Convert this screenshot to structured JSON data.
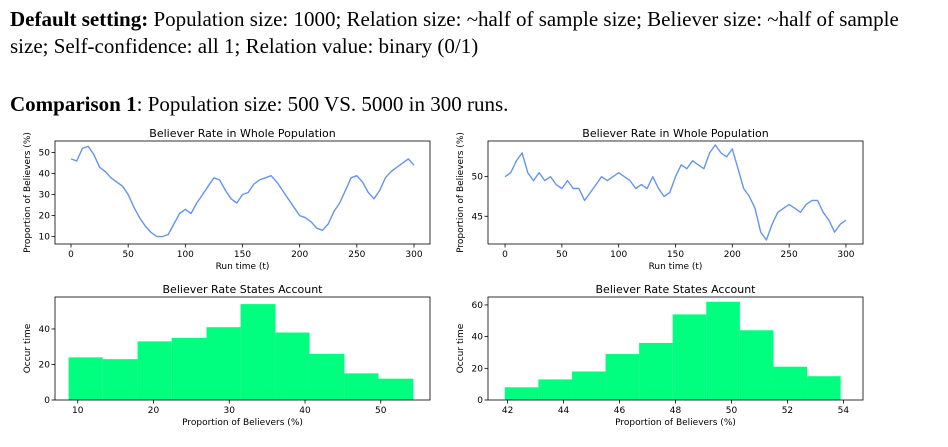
{
  "header": {
    "default_label": "Default setting:",
    "default_text": " Population size: 1000; Relation size: ~half of sample size; Believer size: ~half of sample size; Self-confidence: all 1; Relation value: binary (0/1)",
    "comparison_label": "Comparison 1",
    "comparison_text": ": Population size: 500 VS. 5000 in 300 runs."
  },
  "colors": {
    "line": "#6495ED",
    "bar": "#00FF7F"
  },
  "chart_data": [
    {
      "type": "line",
      "title": "Believer Rate in Whole Population",
      "xlabel": "Run time (t)",
      "ylabel": "Proportion of Believers (%)",
      "xlim": [
        -14,
        314
      ],
      "ylim": [
        6.5,
        55.5
      ],
      "xticks": [
        0,
        50,
        100,
        150,
        200,
        250,
        300
      ],
      "yticks": [
        10,
        20,
        30,
        40,
        50
      ],
      "x": [
        0,
        5,
        10,
        15,
        20,
        25,
        30,
        35,
        40,
        45,
        50,
        55,
        60,
        65,
        70,
        75,
        80,
        85,
        90,
        95,
        100,
        105,
        110,
        115,
        120,
        125,
        130,
        135,
        140,
        145,
        150,
        155,
        160,
        165,
        170,
        175,
        180,
        185,
        190,
        195,
        200,
        205,
        210,
        215,
        220,
        225,
        230,
        235,
        240,
        245,
        250,
        255,
        260,
        265,
        270,
        275,
        280,
        285,
        290,
        295,
        300
      ],
      "values": [
        47,
        46,
        52,
        53,
        49,
        43,
        41,
        38,
        36,
        34,
        30,
        24,
        19,
        15,
        12,
        10,
        10,
        11,
        16,
        21,
        23,
        21,
        26,
        30,
        34,
        38,
        37,
        32,
        28,
        26,
        30,
        31,
        35,
        37,
        38,
        39,
        36,
        32,
        28,
        24,
        20,
        19,
        17,
        14,
        13,
        16,
        22,
        26,
        32,
        38,
        39,
        36,
        31,
        28,
        32,
        38,
        41,
        43,
        45,
        47,
        44
      ]
    },
    {
      "type": "line",
      "title": "Believer Rate in Whole Population",
      "xlabel": "Run time (t)",
      "ylabel": "Proportion of Believers (%)",
      "xlim": [
        -15,
        315
      ],
      "ylim": [
        41.5,
        54.5
      ],
      "xticks": [
        0,
        50,
        100,
        150,
        200,
        250,
        300
      ],
      "yticks": [
        45,
        50
      ],
      "x": [
        0,
        5,
        10,
        15,
        20,
        25,
        30,
        35,
        40,
        45,
        50,
        55,
        60,
        65,
        70,
        75,
        80,
        85,
        90,
        95,
        100,
        105,
        110,
        115,
        120,
        125,
        130,
        135,
        140,
        145,
        150,
        155,
        160,
        165,
        170,
        175,
        180,
        185,
        190,
        195,
        200,
        205,
        210,
        215,
        220,
        225,
        230,
        235,
        240,
        245,
        250,
        255,
        260,
        265,
        270,
        275,
        280,
        285,
        290,
        295,
        300
      ],
      "values": [
        50,
        50.5,
        52,
        53,
        50.5,
        49.5,
        50.5,
        49.5,
        50,
        49,
        48.5,
        49.5,
        48.5,
        48.5,
        47,
        48,
        49,
        50,
        49.5,
        50,
        50.5,
        50,
        49.5,
        48.5,
        49,
        48.5,
        50,
        48.5,
        47.5,
        48,
        50,
        51.5,
        51,
        52,
        51.5,
        51,
        53,
        54,
        53,
        52.5,
        53.5,
        51,
        48.5,
        47.5,
        46,
        43,
        42,
        44,
        45.5,
        46,
        46.5,
        46,
        45.5,
        46.5,
        47,
        47,
        45.5,
        44.5,
        43,
        44,
        44.5
      ]
    },
    {
      "type": "bar",
      "title": "Believer Rate States Account",
      "xlabel": "Proportion of Believers (%)",
      "ylabel": "Occur time",
      "xlim": [
        7,
        56.5
      ],
      "ylim": [
        0,
        58
      ],
      "xticks": [
        10,
        20,
        30,
        40,
        50
      ],
      "yticks": [
        0,
        20,
        40
      ],
      "bin_edges": [
        8.8,
        13.3,
        17.9,
        22.4,
        27,
        31.5,
        36.1,
        40.6,
        45.2,
        49.7,
        54.3
      ],
      "values": [
        24,
        23,
        33,
        35,
        41,
        54,
        38,
        26,
        15,
        12
      ]
    },
    {
      "type": "bar",
      "title": "Believer Rate States Account",
      "xlabel": "Proportion of Believers (%)",
      "ylabel": "Occur time",
      "xlim": [
        41.3,
        54.7
      ],
      "ylim": [
        0,
        65
      ],
      "xticks": [
        42,
        44,
        46,
        48,
        50,
        52,
        54
      ],
      "yticks": [
        0,
        20,
        40,
        60
      ],
      "bin_edges": [
        41.9,
        43.1,
        44.3,
        45.5,
        46.7,
        47.9,
        49.1,
        50.3,
        51.5,
        52.7,
        53.9
      ],
      "values": [
        8,
        13,
        18,
        29,
        36,
        54,
        62,
        44,
        21,
        15
      ]
    }
  ]
}
